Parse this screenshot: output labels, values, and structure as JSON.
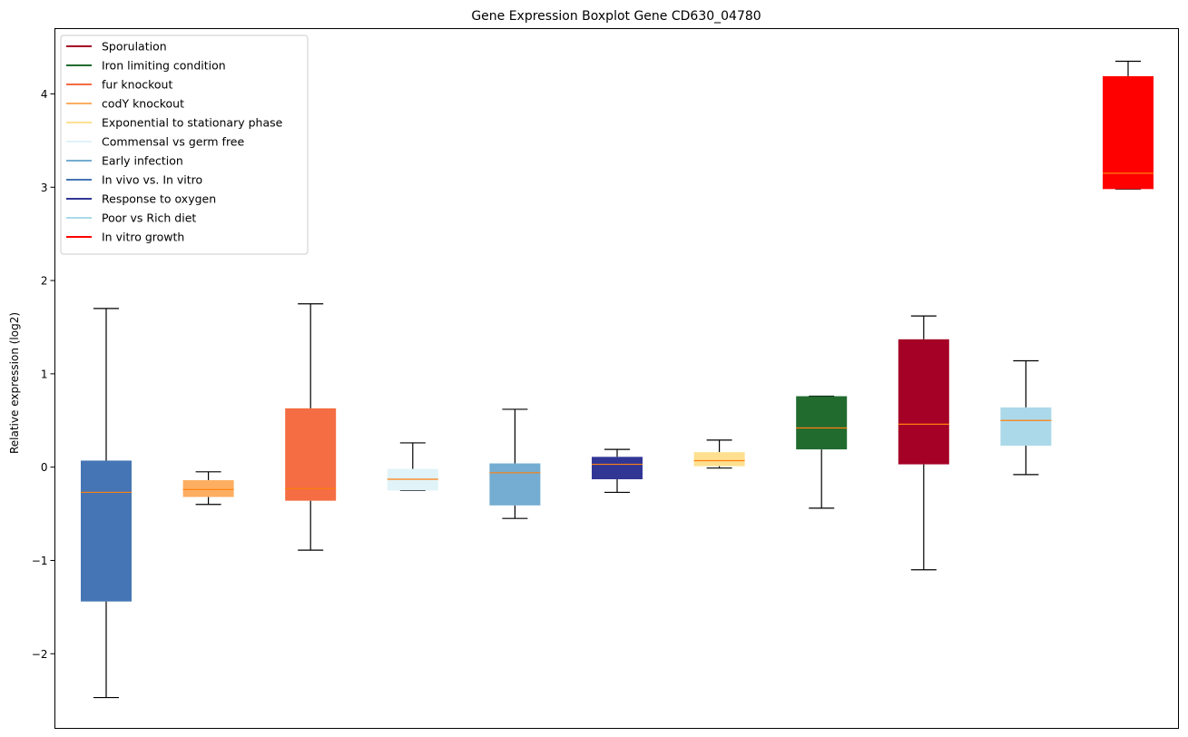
{
  "chart_data": {
    "type": "boxplot",
    "title": "Gene Expression Boxplot Gene CD630_04780",
    "ylabel": "Relative expression (log2)",
    "xlabel": "",
    "ylim": [
      -2.8,
      4.7
    ],
    "yticks": [
      -2,
      -1,
      0,
      1,
      2,
      3,
      4
    ],
    "ytick_labels": [
      "−2",
      "−1",
      "0",
      "1",
      "2",
      "3",
      "4"
    ],
    "grid": false,
    "legend_position": "top-left",
    "median_color": "#ff7f0e",
    "legend": [
      {
        "name": "Sporulation",
        "color": "#a50026"
      },
      {
        "name": "Iron limiting condition",
        "color": "#216b2f"
      },
      {
        "name": "fur knockout",
        "color": "#f46d43"
      },
      {
        "name": "codY knockout",
        "color": "#fdae61"
      },
      {
        "name": "Exponential to stationary phase",
        "color": "#fee090"
      },
      {
        "name": "Commensal vs germ free",
        "color": "#e0f3f8"
      },
      {
        "name": "Early infection",
        "color": "#74add1"
      },
      {
        "name": "In vivo vs. In vitro",
        "color": "#4575b4"
      },
      {
        "name": "Response to oxygen",
        "color": "#313695"
      },
      {
        "name": "Poor vs Rich diet",
        "color": "#abd9e9"
      },
      {
        "name": "In vitro growth",
        "color": "#ff0000"
      }
    ],
    "boxes": [
      {
        "condition": "In vivo vs. In vitro",
        "color": "#4575b4",
        "whislo": -2.47,
        "q1": -1.44,
        "med": -0.27,
        "q3": 0.07,
        "whishi": 1.7
      },
      {
        "condition": "codY knockout",
        "color": "#fdae61",
        "whislo": -0.4,
        "q1": -0.32,
        "med": -0.24,
        "q3": -0.14,
        "whishi": -0.05
      },
      {
        "condition": "fur knockout",
        "color": "#f46d43",
        "whislo": -0.89,
        "q1": -0.36,
        "med": -0.23,
        "q3": 0.63,
        "whishi": 1.75
      },
      {
        "condition": "Commensal vs germ free",
        "color": "#e0f3f8",
        "whislo": -0.25,
        "q1": -0.25,
        "med": -0.13,
        "q3": -0.02,
        "whishi": 0.26
      },
      {
        "condition": "Early infection",
        "color": "#74add1",
        "whislo": -0.55,
        "q1": -0.41,
        "med": -0.06,
        "q3": 0.04,
        "whishi": 0.62
      },
      {
        "condition": "Response to oxygen",
        "color": "#313695",
        "whislo": -0.27,
        "q1": -0.13,
        "med": 0.03,
        "q3": 0.11,
        "whishi": 0.19
      },
      {
        "condition": "Exponential to stationary phase",
        "color": "#fee090",
        "whislo": -0.01,
        "q1": 0.01,
        "med": 0.07,
        "q3": 0.16,
        "whishi": 0.29
      },
      {
        "condition": "Iron limiting condition",
        "color": "#216b2f",
        "whislo": -0.44,
        "q1": 0.19,
        "med": 0.42,
        "q3": 0.76,
        "whishi": 0.76
      },
      {
        "condition": "Sporulation",
        "color": "#a50026",
        "whislo": -1.1,
        "q1": 0.03,
        "med": 0.46,
        "q3": 1.37,
        "whishi": 1.62
      },
      {
        "condition": "Poor vs Rich diet",
        "color": "#abd9e9",
        "whislo": -0.08,
        "q1": 0.23,
        "med": 0.5,
        "q3": 0.64,
        "whishi": 1.14
      },
      {
        "condition": "In vitro growth",
        "color": "#ff0000",
        "whislo": 2.98,
        "q1": 2.98,
        "med": 3.15,
        "q3": 4.19,
        "whishi": 4.35
      }
    ]
  }
}
